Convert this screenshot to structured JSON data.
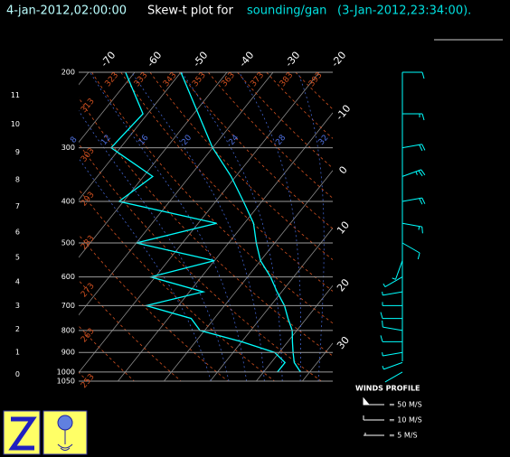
{
  "header": {
    "time": "4-jan-2012,02:00:00",
    "title": "Skew-t plot for",
    "source": "sounding/gan",
    "obs_time": "(3-Jan-2012,23:34:00)."
  },
  "chart_data": {
    "type": "skewt",
    "log_y": true,
    "ylim": [
      200,
      1050
    ],
    "yticks": [
      200,
      300,
      400,
      500,
      600,
      700,
      800,
      900,
      1000,
      1050
    ],
    "xticks": [
      -70,
      -60,
      -50,
      -40,
      -30,
      -20,
      -10,
      0,
      10,
      20,
      30
    ],
    "height_ticks": [
      0,
      1,
      2,
      3,
      4,
      5,
      6,
      7,
      8,
      9,
      10,
      11
    ],
    "dry_adiabats": [
      253,
      263,
      273,
      283,
      293,
      303,
      313,
      323,
      333,
      343,
      353,
      363,
      373,
      383,
      393
    ],
    "moist_adiabats": [
      8,
      12,
      16,
      20,
      24,
      28,
      32
    ],
    "pressure": [
      200,
      250,
      300,
      350,
      400,
      450,
      500,
      550,
      600,
      650,
      700,
      750,
      800,
      850,
      900,
      950,
      1000
    ],
    "series": [
      {
        "color": "#00ffff",
        "values": [
          -50,
          -39,
          -30,
          -21,
          -14,
          -8,
          -4,
          0,
          5,
          9,
          13,
          16,
          19,
          21,
          23,
          25,
          28
        ]
      },
      {
        "color": "#00ffff",
        "values": [
          -62,
          -51,
          -52,
          -38,
          -41,
          -16,
          -30,
          -10,
          -21,
          -7,
          -17,
          -5,
          -1,
          10,
          19,
          23,
          23
        ]
      }
    ],
    "winds": {
      "title": "WINDS PROFILE",
      "color": "#00ffff",
      "speed": [
        10,
        15,
        20,
        25,
        20,
        15,
        10,
        8,
        6,
        5,
        8,
        10,
        12,
        10,
        8,
        6,
        4
      ],
      "direction": [
        90,
        90,
        80,
        70,
        80,
        100,
        120,
        200,
        240,
        260,
        270,
        270,
        280,
        270,
        260,
        250,
        240
      ],
      "legend": [
        "= 50 M/S",
        "= 10 M/S",
        "= 5 M/S"
      ]
    }
  }
}
